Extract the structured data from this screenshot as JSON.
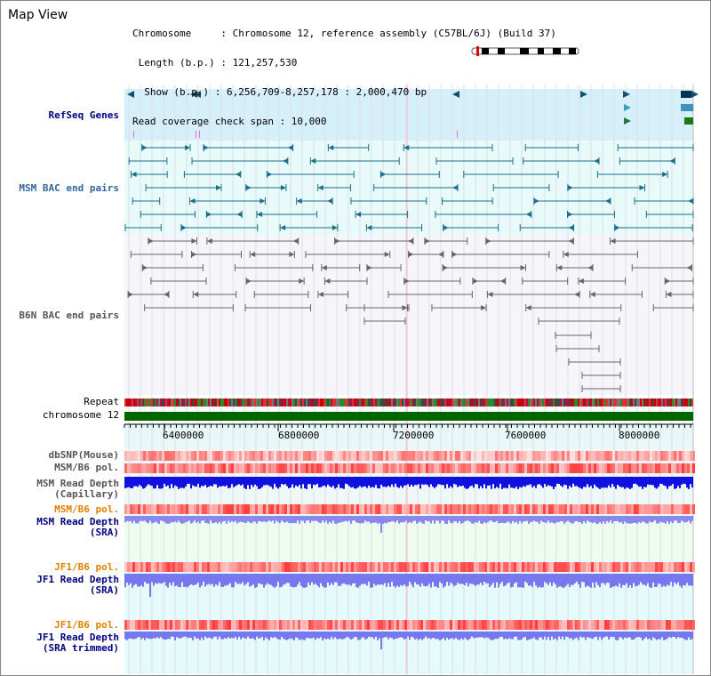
{
  "title": "Map View",
  "header": {
    "chromosome": "Chromosome     : Chromosome 12, reference assembly (C57BL/6J) (Build 37)",
    "length": " Length (b.p.) : 121,257,530",
    "show": "  Show (b.p.) : 6,256,709-8,257,178 : 2,000,470 bp",
    "coverage": "Read coverage check span : 10,000"
  },
  "region": {
    "start": 6256709,
    "end": 8257178,
    "span": 2000470,
    "chromosome_length": 121257530
  },
  "tracks": {
    "refseq_genes": "RefSeq Genes",
    "msm_bac": "MSM BAC end pairs",
    "b6n_bac": "B6N BAC end pairs",
    "repeat": "Repeat",
    "chromosome": "chromosome 12",
    "dbsnp": "dbSNP(Mouse)",
    "msm_b6_pol_1": "MSM/B6 pol.",
    "msm_read_depth_cap_1": "MSM Read Depth",
    "msm_read_depth_cap_2": "(Capillary)",
    "msm_b6_pol_2": "MSM/B6 pol.",
    "msm_read_depth_sra_1": "MSM Read Depth",
    "msm_read_depth_sra_2": "(SRA)",
    "jf1_b6_pol_1": "JF1/B6 pol.",
    "jf1_read_depth_sra_1": "JF1 Read Depth",
    "jf1_read_depth_sra_2": "(SRA)",
    "jf1_b6_pol_2": "JF1/B6 pol.",
    "jf1_read_depth_trim_1": "JF1 Read Depth",
    "jf1_read_depth_trim_2": "(SRA trimmed)"
  },
  "axis": {
    "ticks": [
      "6400000",
      "6800000",
      "7200000",
      "7600000",
      "8000000"
    ]
  },
  "colors": {
    "refseq_bg": "#d6f0fb",
    "bac_bg": "#e8fafa",
    "msm_feature": "#1a6f8a",
    "b6n_feature": "#666666",
    "chromosome_bar": "#006600",
    "msm_label": "#336699",
    "dark_label": "#000080",
    "orange_label": "#e08000",
    "depth_blue": "#1010e0",
    "depth_light": "#7777ee"
  }
}
